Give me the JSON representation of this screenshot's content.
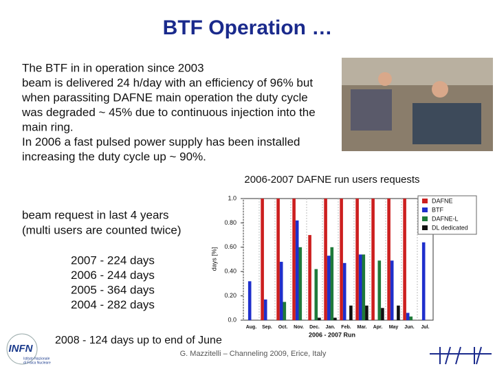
{
  "slide": {
    "title": "BTF Operation …",
    "body": [
      "The BTF in in operation since 2003",
      "beam is delivered 24 h/day with an efficiency of 96% but",
      "when parassiting DAFNE main operation the duty cycle",
      "was degraded ~ 45% due to continuous injection into the",
      "main ring.",
      "In 2006 a fast pulsed power supply has been installed",
      "increasing the duty cycle up ~ 90%."
    ],
    "requests_note": [
      "beam request in last 4 years",
      "(multi users are counted twice)"
    ],
    "years": [
      "2007 - 224 days",
      "2006 - 244 days",
      "2005 - 364 days",
      "2004 - 282 days"
    ],
    "note_2008": "2008 - 124 days up to end of June",
    "footer": "G. Mazzitelli – Channeling 2009, Erice, Italy",
    "logo": {
      "name": "INFN",
      "sub": [
        "Istituto Nazionale",
        "di Fisica Nucleare"
      ]
    }
  },
  "chart_data": {
    "type": "bar",
    "title": "2006-2007 DAFNE run users requests",
    "x_label": "2006 - 2007 Run",
    "y_label": "days [%]",
    "categories": [
      "Aug.",
      "Sep.",
      "Oct.",
      "Nov.",
      "Dec.",
      "Jan.",
      "Feb.",
      "Mar.",
      "Apr.",
      "May",
      "Jun.",
      "Jul."
    ],
    "series": [
      {
        "name": "DAFNE",
        "color": "#cc1f1f",
        "values": [
          0,
          1.0,
          1.0,
          1.0,
          0.7,
          1.0,
          1.0,
          1.0,
          1.0,
          1.0,
          1.0,
          0
        ]
      },
      {
        "name": "BTF",
        "color": "#1f2fcc",
        "values": [
          0.32,
          0.17,
          0.48,
          0.82,
          0,
          0.53,
          0.47,
          0.54,
          0,
          0.49,
          0.06,
          0.64
        ]
      },
      {
        "name": "DAFNE-L",
        "color": "#1f7a3a",
        "values": [
          0,
          0,
          0.15,
          0.6,
          0.42,
          0.6,
          0,
          0.54,
          0.49,
          0,
          0.03,
          0
        ]
      },
      {
        "name": "DL dedicated",
        "color": "#111111",
        "values": [
          0,
          0,
          0,
          0,
          0.02,
          0.02,
          0.12,
          0.12,
          0.1,
          0.12,
          0,
          0
        ]
      }
    ],
    "ylim": [
      0,
      1.0
    ],
    "yticks": [
      {
        "value": 0,
        "label": "0.0"
      },
      {
        "value": 0.2,
        "label": "0.20"
      },
      {
        "value": 0.4,
        "label": "0.40"
      },
      {
        "value": 0.6,
        "label": "0.60"
      },
      {
        "value": 0.8,
        "label": "0.80"
      },
      {
        "value": 1.0,
        "label": "1.0"
      }
    ],
    "grid": true,
    "legend": "upper right"
  }
}
